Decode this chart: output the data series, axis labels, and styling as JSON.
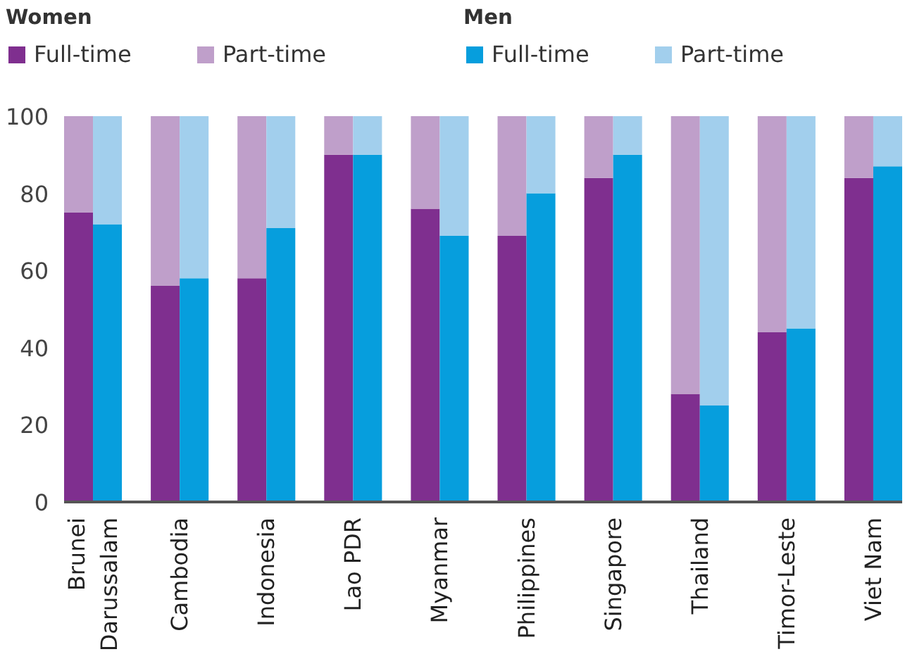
{
  "chart_data": {
    "type": "bar",
    "stacked": true,
    "categories": [
      "Brunei Darussalam",
      null,
      null,
      "Cambodia",
      null,
      null,
      "Indonesia",
      null,
      null,
      "Lao PDR",
      null,
      null,
      "Myanmar",
      null,
      null,
      "Philippines",
      null,
      null,
      "Singapore",
      null,
      null,
      "Thailand",
      null,
      null,
      "Timor-Leste",
      null,
      null,
      "Viet Nam",
      null
    ],
    "annotations": [
      "Women",
      "Men"
    ],
    "series": [
      {
        "name": "Full-time",
        "color": "#7f2f8f",
        "values": [
          75,
          null,
          null,
          56,
          null,
          null,
          58,
          null,
          null,
          90,
          null,
          null,
          76,
          null,
          null,
          69,
          null,
          null,
          84,
          null,
          null,
          28,
          null,
          null,
          44,
          null,
          null,
          84,
          null
        ]
      },
      {
        "name": "Part-time",
        "color": "#bf9fca",
        "values": [
          25,
          null,
          null,
          44,
          null,
          null,
          42,
          null,
          null,
          10,
          null,
          null,
          24,
          null,
          null,
          31,
          null,
          null,
          16,
          null,
          null,
          72,
          null,
          null,
          56,
          null,
          null,
          16,
          null
        ]
      },
      {
        "name": "Full-time",
        "color": "#069edd",
        "values": [
          null,
          72,
          null,
          null,
          58,
          null,
          null,
          71,
          null,
          null,
          90,
          null,
          null,
          69,
          null,
          null,
          80,
          null,
          null,
          90,
          null,
          null,
          25,
          null,
          null,
          45,
          null,
          null,
          87
        ]
      },
      {
        "name": "Part-time",
        "color": "#a2cfed",
        "values": [
          null,
          28,
          null,
          null,
          42,
          null,
          null,
          29,
          null,
          null,
          10,
          null,
          null,
          31,
          null,
          null,
          20,
          null,
          null,
          10,
          null,
          null,
          75,
          null,
          null,
          55,
          null,
          null,
          13
        ]
      }
    ],
    "ylim": [
      0,
      100
    ],
    "yticks": [
      0,
      20,
      40,
      60,
      80,
      100
    ],
    "legend": "top left"
  }
}
